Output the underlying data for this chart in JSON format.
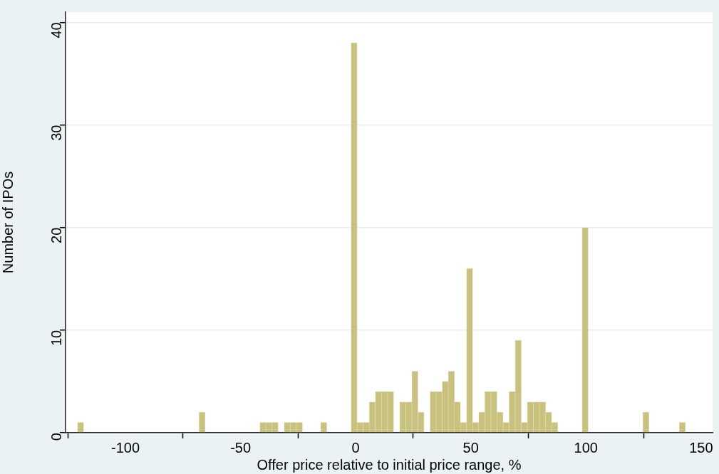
{
  "chart_data": {
    "type": "histogram",
    "xlabel": "Offer price relative to initial price range, %",
    "ylabel": "Number of IPOs",
    "bins": [
      -120.8,
      -118.16,
      -115.52,
      -112.88,
      -110.24,
      -107.6,
      -104.96,
      -102.32,
      -99.68,
      -97.04,
      -94.4,
      -91.76,
      -89.12,
      -86.48,
      -83.84,
      -81.2,
      -78.56,
      -75.92,
      -73.28,
      -70.64,
      -68,
      -65.36,
      -62.72,
      -60.08,
      -57.44,
      -54.8,
      -52.16,
      -49.52,
      -46.88,
      -44.24,
      -41.6,
      -38.96,
      -36.32,
      -33.68,
      -31.04,
      -28.4,
      -25.76,
      -23.12,
      -20.48,
      -17.84,
      -15.2,
      -12.56,
      -9.92,
      -7.28,
      -4.64,
      -2,
      0.64,
      3.28,
      5.92,
      8.56,
      11.2,
      13.84,
      16.48,
      19.12,
      21.76,
      24.4,
      27.04,
      29.68,
      32.32,
      34.96,
      37.6,
      40.24,
      42.88,
      45.52,
      48.16,
      50.8,
      53.44,
      56.08,
      58.72,
      61.36,
      64,
      66.64,
      69.28,
      71.92,
      74.56,
      77.2,
      79.84,
      82.48,
      85.12,
      87.76,
      90.4,
      93.04,
      95.68,
      98.32,
      100.96,
      103.6,
      106.24,
      108.88,
      111.52,
      114.16,
      116.8,
      119.44,
      122.08,
      124.72,
      127.36,
      130,
      132.64,
      135.28,
      137.92,
      140.56,
      143.2
    ],
    "values": [
      1,
      0,
      0,
      0,
      0,
      0,
      0,
      0,
      0,
      0,
      0,
      0,
      0,
      0,
      0,
      0,
      0,
      0,
      0,
      0,
      2,
      0,
      0,
      0,
      0,
      0,
      0,
      0,
      0,
      0,
      1,
      1,
      1,
      0,
      1,
      1,
      1,
      0,
      0,
      0,
      1,
      0,
      0,
      0,
      0,
      38,
      1,
      1,
      3,
      4,
      4,
      4,
      0,
      3,
      3,
      6,
      2,
      0,
      4,
      4,
      5,
      6,
      3,
      1,
      16,
      1,
      2,
      4,
      4,
      2,
      1,
      4,
      9,
      1,
      3,
      3,
      3,
      2,
      1,
      0,
      0,
      0,
      0,
      20,
      0,
      0,
      0,
      0,
      0,
      0,
      0,
      0,
      0,
      2,
      0,
      0,
      0,
      0,
      0,
      1
    ],
    "color": "#c9c27f",
    "xlim": [
      -126,
      155
    ],
    "xticks": [
      -100,
      -50,
      0,
      50,
      100,
      150
    ],
    "ylim": [
      0,
      41
    ],
    "yticks": [
      0,
      10,
      20,
      30,
      40
    ],
    "grid": "y",
    "legend": false
  }
}
